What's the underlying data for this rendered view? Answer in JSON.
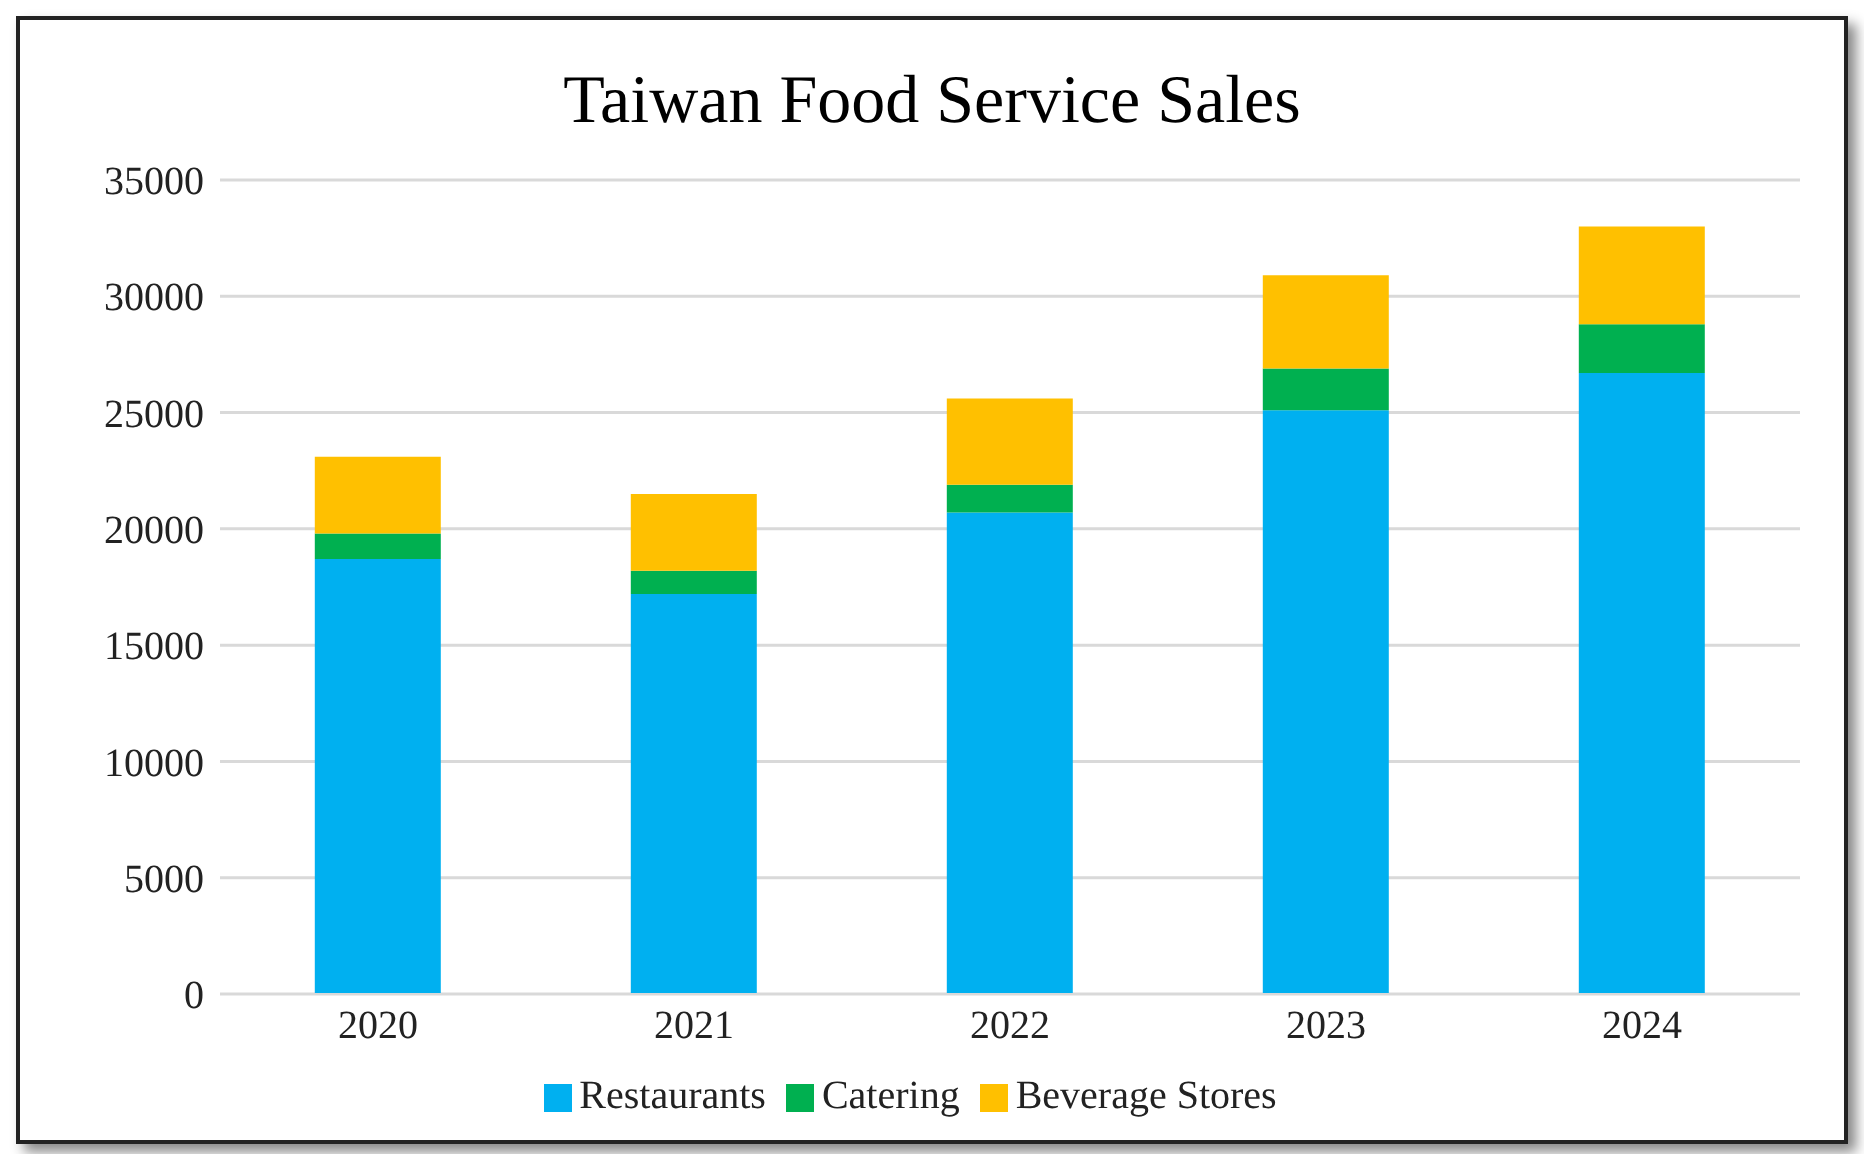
{
  "chart_data": {
    "type": "bar",
    "title": "Taiwan Food Service Sales",
    "categories": [
      "2020",
      "2021",
      "2022",
      "2023",
      "2024"
    ],
    "stacked": true,
    "series": [
      {
        "name": "Restaurants",
        "color": "#00b0f0",
        "values": [
          18700,
          17200,
          20700,
          25100,
          26700
        ]
      },
      {
        "name": "Catering",
        "color": "#00b050",
        "values": [
          1100,
          1000,
          1200,
          1800,
          2100
        ]
      },
      {
        "name": "Beverage Stores",
        "color": "#ffc000",
        "values": [
          3300,
          3300,
          3700,
          4000,
          4200
        ]
      }
    ],
    "ylim": [
      0,
      35000
    ],
    "yticks": [
      0,
      5000,
      10000,
      15000,
      20000,
      25000,
      30000,
      35000
    ],
    "grid": "y",
    "legend": "bottom"
  }
}
